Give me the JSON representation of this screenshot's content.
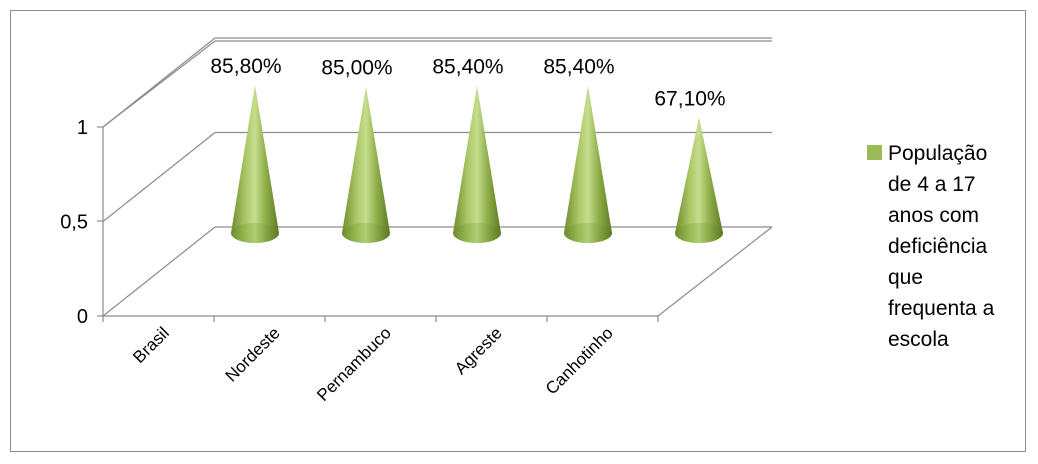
{
  "chart_data": {
    "type": "bar",
    "style": "3d-cone",
    "categories": [
      "Brasil",
      "Nordeste",
      "Pernambuco",
      "Agreste",
      "Canhotinho"
    ],
    "series": [
      {
        "name": "População de 4 a 17 anos com deficiência que frequenta a escola",
        "values": [
          0.858,
          0.85,
          0.854,
          0.854,
          0.671
        ],
        "data_labels": [
          "85,80%",
          "85,00%",
          "85,40%",
          "85,40%",
          "67,10%"
        ],
        "color": "#9bbb59"
      }
    ],
    "y_ticks": [
      "0",
      "0,5",
      "1"
    ],
    "ylim": [
      0,
      1
    ],
    "grid": true,
    "legend_position": "right",
    "title": "",
    "xlabel": "",
    "ylabel": ""
  }
}
